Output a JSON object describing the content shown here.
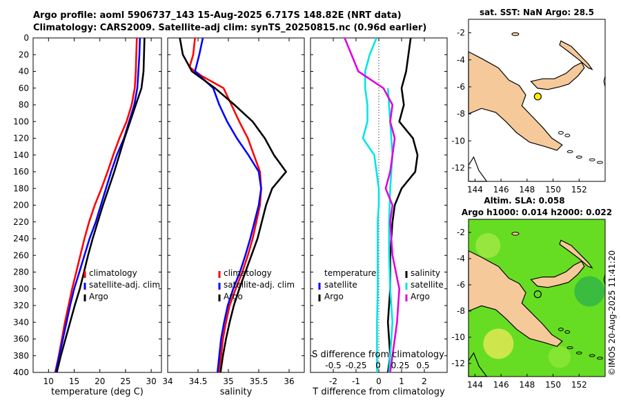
{
  "header": {
    "line1": "Argo profile: aoml 5906737_143 15-Aug-2025 6.717S 148.82E (NRT data)",
    "line2": "Climatology: CARS2009. Satellite-adj clim: synTS_20250815.nc (0.96d earlier)"
  },
  "colors": {
    "climatology": "#ff0000",
    "satellite": "#0000ff",
    "argo": "#000000",
    "t_diff": "#00e5e5",
    "s_diff": "#e000e0",
    "land": "#f5c99a",
    "sla_field": "#66dd22"
  },
  "chart_data": [
    {
      "type": "line",
      "name": "temperature-profile",
      "xlabel": "temperature (deg C)",
      "ylabel": "",
      "xlim": [
        7,
        32
      ],
      "ylim": [
        400,
        0
      ],
      "xticks": [
        10,
        15,
        20,
        25,
        30
      ],
      "yticks": [
        0,
        20,
        40,
        60,
        80,
        100,
        120,
        140,
        160,
        180,
        200,
        220,
        240,
        260,
        280,
        300,
        320,
        340,
        360,
        380,
        400
      ],
      "series": [
        {
          "name": "climatology",
          "color": "#ff0000",
          "points": [
            [
              27.2,
              0
            ],
            [
              27.1,
              20
            ],
            [
              27.0,
              40
            ],
            [
              26.8,
              60
            ],
            [
              26.2,
              80
            ],
            [
              25.2,
              100
            ],
            [
              23.8,
              120
            ],
            [
              22.6,
              140
            ],
            [
              21.5,
              160
            ],
            [
              20.3,
              180
            ],
            [
              19.0,
              200
            ],
            [
              17.9,
              220
            ],
            [
              17.0,
              240
            ],
            [
              16.2,
              260
            ],
            [
              15.4,
              280
            ],
            [
              14.6,
              300
            ],
            [
              13.9,
              320
            ],
            [
              13.2,
              340
            ],
            [
              12.6,
              360
            ],
            [
              12.0,
              380
            ],
            [
              11.3,
              400
            ]
          ]
        },
        {
          "name": "satellite-adj. clim",
          "color": "#0000ff",
          "points": [
            [
              27.8,
              0
            ],
            [
              27.7,
              20
            ],
            [
              27.5,
              40
            ],
            [
              27.3,
              60
            ],
            [
              26.7,
              80
            ],
            [
              25.7,
              100
            ],
            [
              24.7,
              120
            ],
            [
              23.3,
              140
            ],
            [
              22.2,
              160
            ],
            [
              21.2,
              180
            ],
            [
              20.2,
              200
            ],
            [
              19.2,
              220
            ],
            [
              18.0,
              240
            ],
            [
              17.0,
              260
            ],
            [
              16.0,
              280
            ],
            [
              15.0,
              300
            ],
            [
              14.2,
              320
            ],
            [
              13.5,
              340
            ],
            [
              12.8,
              360
            ],
            [
              12.1,
              380
            ],
            [
              11.4,
              400
            ]
          ]
        },
        {
          "name": "Argo",
          "color": "#000000",
          "points": [
            [
              28.7,
              0
            ],
            [
              28.6,
              20
            ],
            [
              28.5,
              40
            ],
            [
              28.1,
              60
            ],
            [
              27.0,
              80
            ],
            [
              25.9,
              100
            ],
            [
              24.8,
              120
            ],
            [
              23.8,
              140
            ],
            [
              22.8,
              160
            ],
            [
              21.7,
              180
            ],
            [
              20.6,
              200
            ],
            [
              19.6,
              220
            ],
            [
              18.6,
              240
            ],
            [
              17.7,
              260
            ],
            [
              16.9,
              280
            ],
            [
              16.1,
              300
            ],
            [
              15.1,
              320
            ],
            [
              14.2,
              340
            ],
            [
              13.3,
              360
            ],
            [
              12.4,
              380
            ],
            [
              11.6,
              400
            ]
          ]
        }
      ],
      "legend": [
        "climatology",
        "satellite-adj. clim",
        "Argo"
      ]
    },
    {
      "type": "line",
      "name": "salinity-profile",
      "xlabel": "salinity",
      "xlim": [
        34,
        36.25
      ],
      "ylim": [
        400,
        0
      ],
      "xticks": [
        34,
        34.5,
        35,
        35.5,
        36
      ],
      "series": [
        {
          "name": "climatology",
          "color": "#ff0000",
          "points": [
            [
              34.45,
              0
            ],
            [
              34.42,
              20
            ],
            [
              34.36,
              35
            ],
            [
              34.55,
              45
            ],
            [
              34.92,
              60
            ],
            [
              35.05,
              80
            ],
            [
              35.18,
              100
            ],
            [
              35.32,
              120
            ],
            [
              35.42,
              140
            ],
            [
              35.52,
              160
            ],
            [
              35.54,
              180
            ],
            [
              35.52,
              200
            ],
            [
              35.46,
              220
            ],
            [
              35.4,
              240
            ],
            [
              35.32,
              260
            ],
            [
              35.23,
              280
            ],
            [
              35.12,
              300
            ],
            [
              35.02,
              320
            ],
            [
              34.96,
              340
            ],
            [
              34.91,
              360
            ],
            [
              34.88,
              380
            ],
            [
              34.84,
              400
            ]
          ]
        },
        {
          "name": "satellite-adj. clim",
          "color": "#0000ff",
          "points": [
            [
              34.58,
              0
            ],
            [
              34.52,
              20
            ],
            [
              34.45,
              40
            ],
            [
              34.75,
              60
            ],
            [
              34.85,
              80
            ],
            [
              34.98,
              100
            ],
            [
              35.14,
              120
            ],
            [
              35.33,
              140
            ],
            [
              35.5,
              160
            ],
            [
              35.54,
              180
            ],
            [
              35.5,
              200
            ],
            [
              35.43,
              220
            ],
            [
              35.36,
              240
            ],
            [
              35.28,
              260
            ],
            [
              35.19,
              280
            ],
            [
              35.08,
              300
            ],
            [
              34.99,
              320
            ],
            [
              34.93,
              340
            ],
            [
              34.88,
              360
            ],
            [
              34.85,
              380
            ],
            [
              34.82,
              400
            ]
          ]
        },
        {
          "name": "Argo",
          "color": "#000000",
          "points": [
            [
              34.2,
              0
            ],
            [
              34.25,
              20
            ],
            [
              34.4,
              40
            ],
            [
              34.78,
              60
            ],
            [
              35.1,
              80
            ],
            [
              35.4,
              100
            ],
            [
              35.6,
              120
            ],
            [
              35.75,
              140
            ],
            [
              35.95,
              160
            ],
            [
              35.72,
              180
            ],
            [
              35.62,
              200
            ],
            [
              35.55,
              220
            ],
            [
              35.48,
              240
            ],
            [
              35.38,
              260
            ],
            [
              35.28,
              280
            ],
            [
              35.18,
              300
            ],
            [
              35.09,
              320
            ],
            [
              35.02,
              340
            ],
            [
              34.96,
              360
            ],
            [
              34.91,
              380
            ],
            [
              34.87,
              400
            ]
          ]
        }
      ],
      "legend": [
        "climatology",
        "satellite-adj. clim",
        "Argo"
      ]
    },
    {
      "type": "line",
      "name": "difference-profile",
      "xlabel": "T difference from climatology",
      "top_label": "S difference from climatology",
      "xlim": [
        -3,
        3
      ],
      "ylim": [
        400,
        0
      ],
      "xticks": [
        -2,
        -1,
        0,
        1,
        2
      ],
      "top_ticks": [
        "-0.5",
        "-0.25",
        "0",
        "0.25",
        "0.5"
      ],
      "series": [
        {
          "name": "temperature satellite",
          "color": "#00e5e5",
          "points": [
            [
              -0.1,
              0
            ],
            [
              -0.4,
              20
            ],
            [
              -0.6,
              40
            ],
            [
              -0.6,
              60
            ],
            [
              -0.5,
              80
            ],
            [
              -0.5,
              100
            ],
            [
              -0.7,
              120
            ],
            [
              -0.2,
              140
            ],
            [
              -0.1,
              160
            ],
            [
              0.0,
              180
            ],
            [
              0.0,
              200
            ],
            [
              -0.05,
              220
            ],
            [
              -0.05,
              260
            ],
            [
              -0.05,
              300
            ],
            [
              -0.08,
              340
            ],
            [
              -0.08,
              380
            ],
            [
              -0.08,
              400
            ]
          ]
        },
        {
          "name": "temperature Argo",
          "color": "#000000",
          "points": [
            [
              1.4,
              0
            ],
            [
              1.3,
              20
            ],
            [
              1.2,
              40
            ],
            [
              1.0,
              60
            ],
            [
              1.1,
              80
            ],
            [
              0.9,
              100
            ],
            [
              1.5,
              120
            ],
            [
              1.7,
              140
            ],
            [
              1.6,
              160
            ],
            [
              1.0,
              180
            ],
            [
              0.7,
              200
            ],
            [
              0.6,
              220
            ],
            [
              0.5,
              260
            ],
            [
              0.5,
              300
            ],
            [
              0.4,
              340
            ],
            [
              0.5,
              380
            ],
            [
              0.4,
              400
            ]
          ]
        },
        {
          "name": "salinity satellite",
          "color": "#00e5e5",
          "points": [
            [
              0.4,
              60
            ],
            [
              0.5,
              100
            ],
            [
              0.6,
              140
            ],
            [
              0.5,
              180
            ],
            [
              0.45,
              220
            ],
            [
              0.45,
              260
            ],
            [
              0.5,
              300
            ],
            [
              0.6,
              340
            ],
            [
              0.5,
              380
            ],
            [
              0.45,
              400
            ]
          ]
        },
        {
          "name": "salinity Argo",
          "color": "#e000e0",
          "points": [
            [
              -1.5,
              0
            ],
            [
              -1.2,
              20
            ],
            [
              -0.9,
              40
            ],
            [
              0.2,
              60
            ],
            [
              0.6,
              80
            ],
            [
              0.5,
              100
            ],
            [
              0.7,
              120
            ],
            [
              0.6,
              140
            ],
            [
              0.5,
              160
            ],
            [
              0.3,
              180
            ],
            [
              0.6,
              200
            ],
            [
              0.5,
              220
            ],
            [
              0.6,
              260
            ],
            [
              0.9,
              300
            ],
            [
              0.8,
              340
            ],
            [
              0.6,
              380
            ],
            [
              0.5,
              400
            ]
          ]
        }
      ],
      "legend_left": [
        "temperature",
        "satellite",
        "Argo"
      ],
      "legend_right": [
        "salinity",
        "satellite",
        "Argo"
      ]
    },
    {
      "type": "map",
      "name": "sst-map",
      "title": "sat. SST: NaN Argo: 28.5",
      "xlim": [
        143.5,
        154
      ],
      "ylim": [
        -13,
        -1
      ],
      "xticks": [
        144,
        146,
        148,
        150,
        152
      ],
      "yticks": [
        -2,
        -4,
        -6,
        -8,
        -10,
        -12
      ],
      "float": {
        "lon": 148.82,
        "lat": -6.717
      }
    },
    {
      "type": "map",
      "name": "sla-map",
      "title_line1": "Altim. SLA: 0.058",
      "title_line2": "Argo h1000: 0.014 h2000: 0.022",
      "xlim": [
        143.5,
        154
      ],
      "ylim": [
        -13,
        -1
      ],
      "xticks": [
        144,
        146,
        148,
        150,
        152
      ],
      "yticks": [
        -2,
        -4,
        -6,
        -8,
        -10,
        -12
      ],
      "float": {
        "lon": 148.82,
        "lat": -6.717
      }
    }
  ],
  "footer": {
    "stamp": "©IMOS 20-Aug-2025 11:41:20"
  }
}
